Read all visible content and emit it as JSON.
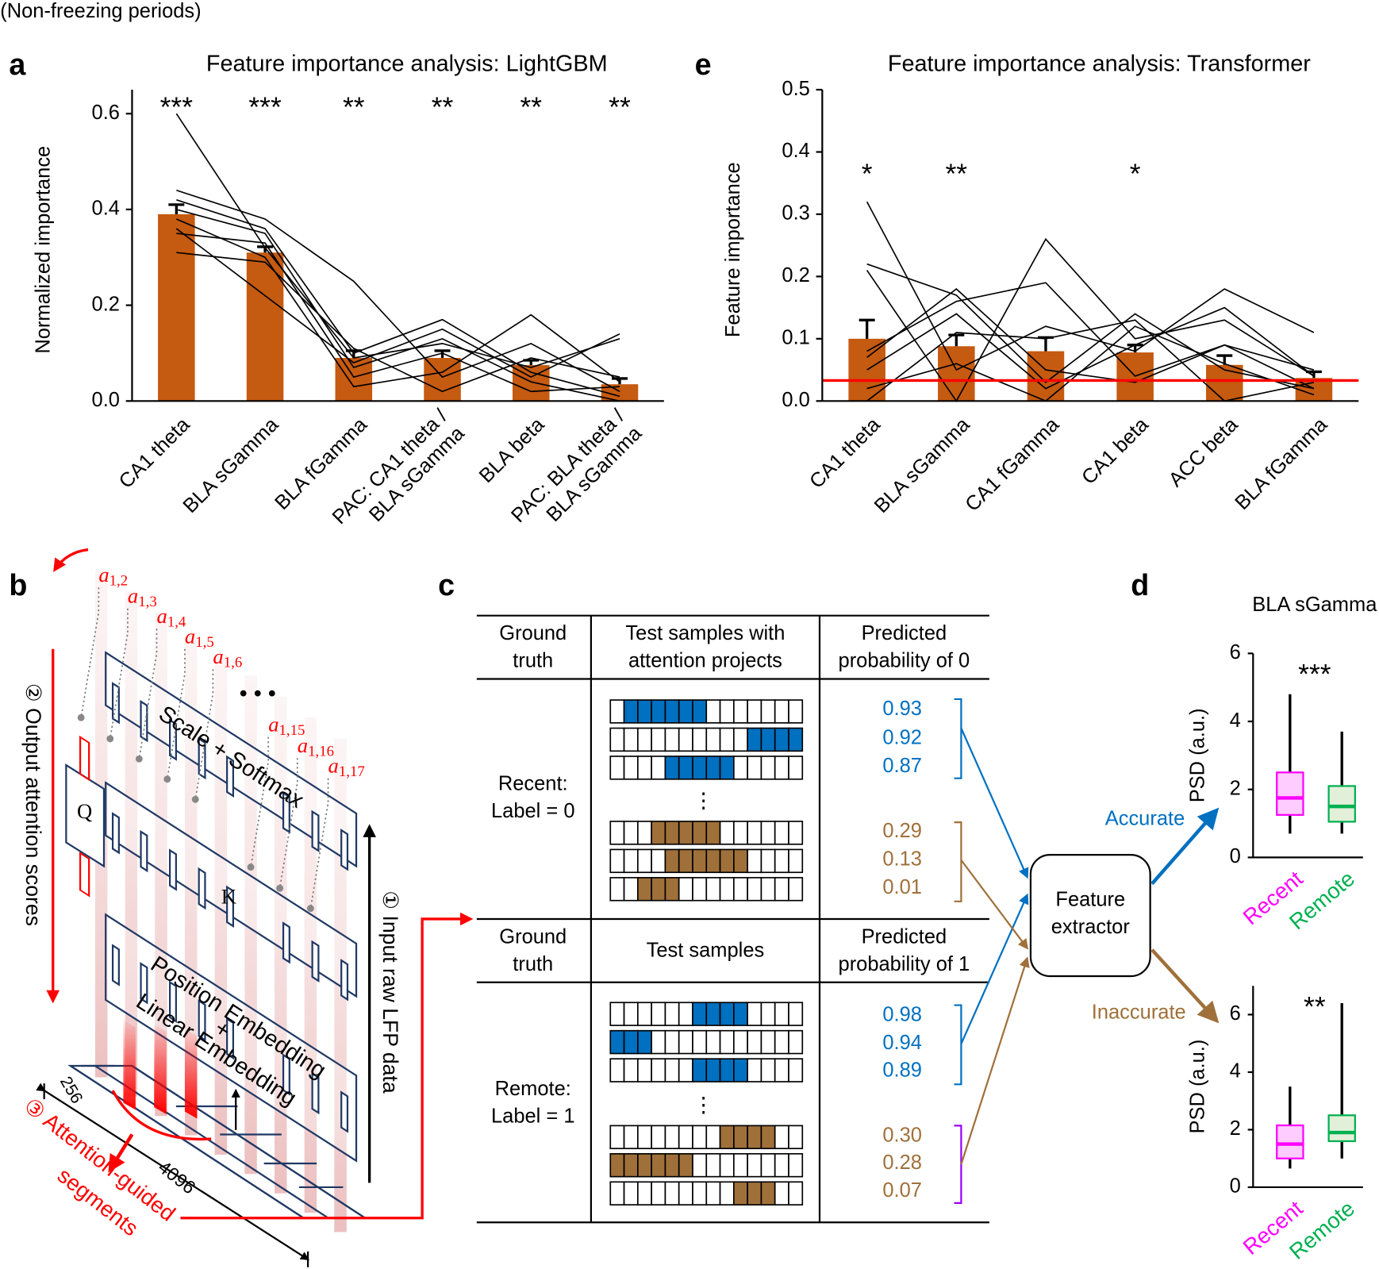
{
  "header": {
    "title": "(Non-freezing periods)"
  },
  "panel_letters": [
    "a",
    "e",
    "b",
    "c",
    "d"
  ],
  "chart_data": [
    {
      "type": "bar",
      "title": "Feature importance analysis: LightGBM",
      "y_label": "Normalized importance",
      "categories": [
        "CA1 theta",
        "BLA sGamma",
        "BLA fGamma",
        "PAC: CA1 theta / BLA sGamma",
        "BLA beta",
        "PAC: BLA theta / BLA sGamma"
      ],
      "values": [
        0.39,
        0.31,
        0.09,
        0.09,
        0.075,
        0.035
      ],
      "errors": [
        0.02,
        0.012,
        0.015,
        0.015,
        0.01,
        0.012
      ],
      "significance": [
        "***",
        "***",
        "**",
        "**",
        "**",
        "**"
      ],
      "color": "#c55a11",
      "subject_lines": [
        [
          0.6,
          0.32,
          0.09,
          0.12,
          0.07,
          0.13
        ],
        [
          0.44,
          0.38,
          0.25,
          0.05,
          0.12,
          0.02
        ],
        [
          0.42,
          0.36,
          0.1,
          0.17,
          0.06,
          0.01
        ],
        [
          0.38,
          0.3,
          0.03,
          0.06,
          0.18,
          0.04
        ],
        [
          0.36,
          0.22,
          0.08,
          0.15,
          0.05,
          0.14
        ],
        [
          0.35,
          0.33,
          0.05,
          0.1,
          0.02,
          0.03
        ],
        [
          0.31,
          0.29,
          0.11,
          0.02,
          0.09,
          0.05
        ],
        [
          0.4,
          0.35,
          0.07,
          0.13,
          0.04,
          0.0
        ]
      ],
      "ylim": [
        0,
        0.65
      ],
      "yticks": [
        {
          "value": 0,
          "label": "0.0"
        },
        0.2,
        0.4,
        0.6
      ]
    },
    {
      "type": "bar",
      "title": "Feature importance analysis: Transformer",
      "y_label": "Feature importance",
      "categories": [
        "CA1 theta",
        "BLA sGamma",
        "CA1 fGamma",
        "CA1 beta",
        "ACC beta",
        "BLA fGamma"
      ],
      "values": [
        0.1,
        0.088,
        0.08,
        0.078,
        0.058,
        0.037
      ],
      "errors": [
        0.03,
        0.018,
        0.022,
        0.012,
        0.015,
        0.01
      ],
      "significance": [
        "*",
        "**",
        null,
        "*",
        null,
        null
      ],
      "color": "#c55a11",
      "reference_line": 0.033,
      "reference_color": "#ff0000",
      "subject_lines": [
        [
          0.32,
          0.05,
          0.12,
          0.08,
          0.18,
          0.11
        ],
        [
          0.22,
          0.17,
          0.03,
          0.14,
          0.05,
          0.02
        ],
        [
          0.21,
          0.0,
          0.26,
          0.1,
          0.13,
          0.04
        ],
        [
          0.08,
          0.16,
          0.19,
          0.04,
          0.09,
          0.05
        ],
        [
          0.0,
          0.11,
          0.1,
          0.13,
          0.0,
          0.03
        ],
        [
          0.07,
          0.18,
          0.05,
          0.03,
          0.09,
          0.02
        ],
        [
          0.02,
          0.06,
          0.0,
          0.12,
          0.06,
          0.01
        ],
        [
          0.05,
          0.14,
          0.02,
          0.09,
          0.15,
          0.04
        ]
      ],
      "ylim": [
        0,
        0.5
      ],
      "yticks": [
        {
          "value": 0,
          "label": "0.0"
        },
        0.1,
        0.2,
        0.3,
        0.4,
        0.5
      ]
    },
    {
      "type": "box",
      "title": "BLA sGamma",
      "y_label": "PSD (a.u.)",
      "significance": "***",
      "series": [
        {
          "name": "Recent",
          "color": "#ff00ff",
          "fill": "#ffccff",
          "whisker_low": 0.7,
          "q1": 1.25,
          "median": 1.75,
          "q3": 2.5,
          "whisker_high": 4.8
        },
        {
          "name": "Remote",
          "color": "#00b050",
          "fill": "#e2f0d9",
          "whisker_low": 0.7,
          "q1": 1.05,
          "median": 1.5,
          "q3": 2.1,
          "whisker_high": 3.7
        }
      ],
      "ylim": [
        0,
        6
      ],
      "yticks": [
        0,
        2,
        4,
        6
      ]
    },
    {
      "type": "box",
      "y_label": "PSD (a.u.)",
      "significance": "**",
      "series": [
        {
          "name": "Recent",
          "color": "#ff00ff",
          "fill": "#ffccff",
          "whisker_low": 0.65,
          "q1": 1.0,
          "median": 1.5,
          "q3": 2.15,
          "whisker_high": 3.5
        },
        {
          "name": "Remote",
          "color": "#00b050",
          "fill": "#e2f0d9",
          "whisker_low": 1.0,
          "q1": 1.6,
          "median": 1.9,
          "q3": 2.5,
          "whisker_high": 6.4
        }
      ],
      "ylim": [
        0,
        7
      ],
      "yticks": [
        0,
        2,
        4,
        6
      ]
    }
  ],
  "panel_b": {
    "attention_symbol": "a",
    "attention_indices": [
      "1,2",
      "1,3",
      "1,4",
      "1,5",
      "1,6",
      "1,15",
      "1,16",
      "1,17"
    ],
    "layer_softmax": "Scale + Softmax",
    "q": "Q",
    "k": "K",
    "layer_position": "Position Embedding",
    "plus": "+",
    "layer_linear": "Linear Embedding",
    "step1": "① Input raw LFP data",
    "step2": "② Output attention scores",
    "step3": [
      "③ Attention-guided",
      "segments"
    ],
    "dim_256": "256",
    "dim_4096": "4096"
  },
  "panel_c": {
    "headers_top": [
      [
        "Ground",
        "truth"
      ],
      [
        "Test samples with",
        "attention projects"
      ],
      [
        "Predicted",
        "probability of 0"
      ]
    ],
    "headers_bottom": [
      [
        "Ground",
        "truth"
      ],
      [
        "Test samples"
      ],
      [
        "Predicted",
        "probability of 1"
      ]
    ],
    "recent_label": [
      "Recent:",
      "Label = 0"
    ],
    "remote_label": [
      "Remote:",
      "Label = 1"
    ],
    "recent_probs": [
      "0.93",
      "0.92",
      "0.87",
      "0.29",
      "0.13",
      "0.01"
    ],
    "remote_probs": [
      "0.98",
      "0.94",
      "0.89",
      "0.30",
      "0.28",
      "0.07"
    ],
    "extractor": [
      "Feature",
      "extractor"
    ],
    "accurate": "Accurate",
    "inaccurate": "Inaccurate"
  }
}
